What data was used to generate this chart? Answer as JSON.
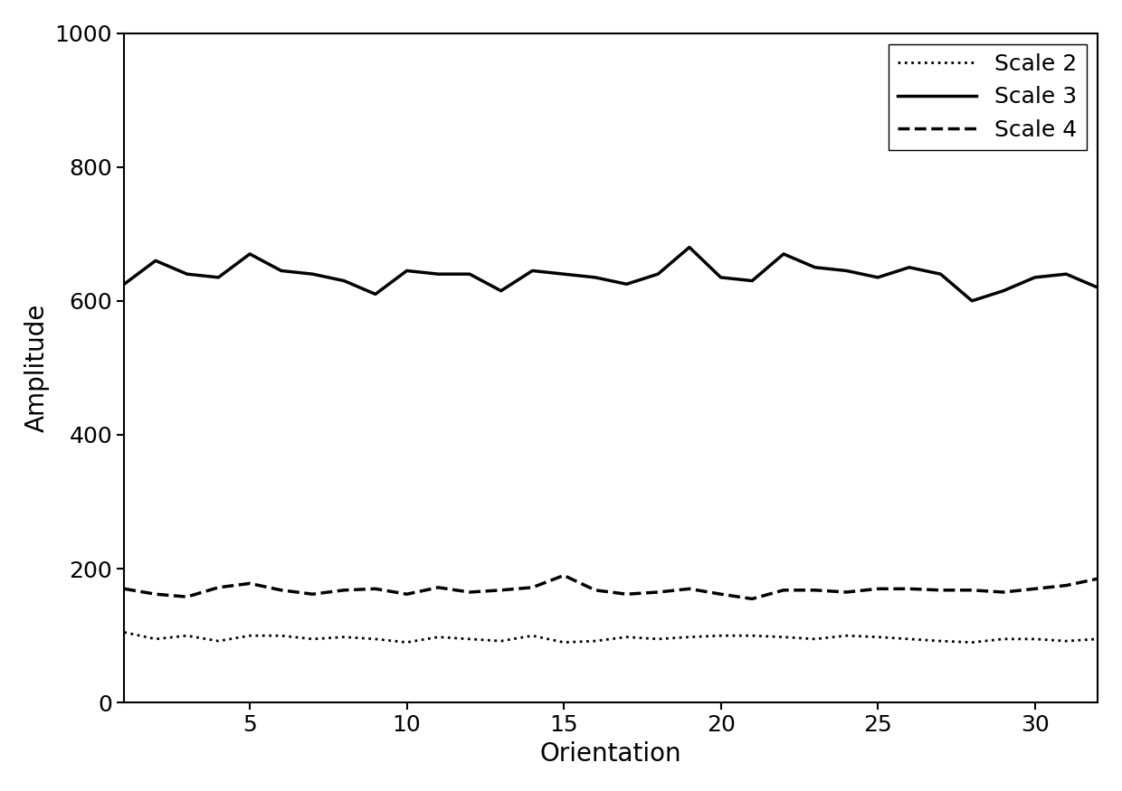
{
  "title": "",
  "xlabel": "Orientation",
  "ylabel": "Amplitude",
  "xlim": [
    1,
    32
  ],
  "ylim": [
    0,
    1000
  ],
  "xticks": [
    5,
    10,
    15,
    20,
    25,
    30
  ],
  "yticks": [
    0,
    200,
    400,
    600,
    800,
    1000
  ],
  "legend_labels": [
    "Scale 2",
    "Scale 3",
    "Scale 4"
  ],
  "legend_styles": [
    "dotted",
    "solid",
    "dashed"
  ],
  "background_color": "#ffffff",
  "line_color": "#000000",
  "scale2_x": [
    1,
    2,
    3,
    4,
    5,
    6,
    7,
    8,
    9,
    10,
    11,
    12,
    13,
    14,
    15,
    16,
    17,
    18,
    19,
    20,
    21,
    22,
    23,
    24,
    25,
    26,
    27,
    28,
    29,
    30,
    31,
    32
  ],
  "scale2_y": [
    105,
    95,
    100,
    92,
    100,
    100,
    95,
    98,
    95,
    90,
    98,
    95,
    92,
    100,
    90,
    92,
    98,
    95,
    98,
    100,
    100,
    98,
    95,
    100,
    98,
    95,
    92,
    90,
    95,
    95,
    92,
    95
  ],
  "scale3_x": [
    1,
    2,
    3,
    4,
    5,
    6,
    7,
    8,
    9,
    10,
    11,
    12,
    13,
    14,
    15,
    16,
    17,
    18,
    19,
    20,
    21,
    22,
    23,
    24,
    25,
    26,
    27,
    28,
    29,
    30,
    31,
    32
  ],
  "scale3_y": [
    625,
    660,
    640,
    635,
    670,
    645,
    640,
    630,
    610,
    645,
    640,
    640,
    615,
    645,
    640,
    635,
    625,
    640,
    680,
    635,
    630,
    670,
    650,
    645,
    635,
    650,
    640,
    600,
    615,
    635,
    640,
    620
  ],
  "scale4_x": [
    1,
    2,
    3,
    4,
    5,
    6,
    7,
    8,
    9,
    10,
    11,
    12,
    13,
    14,
    15,
    16,
    17,
    18,
    19,
    20,
    21,
    22,
    23,
    24,
    25,
    26,
    27,
    28,
    29,
    30,
    31,
    32
  ],
  "scale4_y": [
    170,
    162,
    158,
    172,
    178,
    168,
    162,
    168,
    170,
    162,
    172,
    165,
    168,
    172,
    190,
    168,
    162,
    165,
    170,
    162,
    155,
    168,
    168,
    165,
    170,
    170,
    168,
    168,
    165,
    170,
    175,
    185
  ]
}
